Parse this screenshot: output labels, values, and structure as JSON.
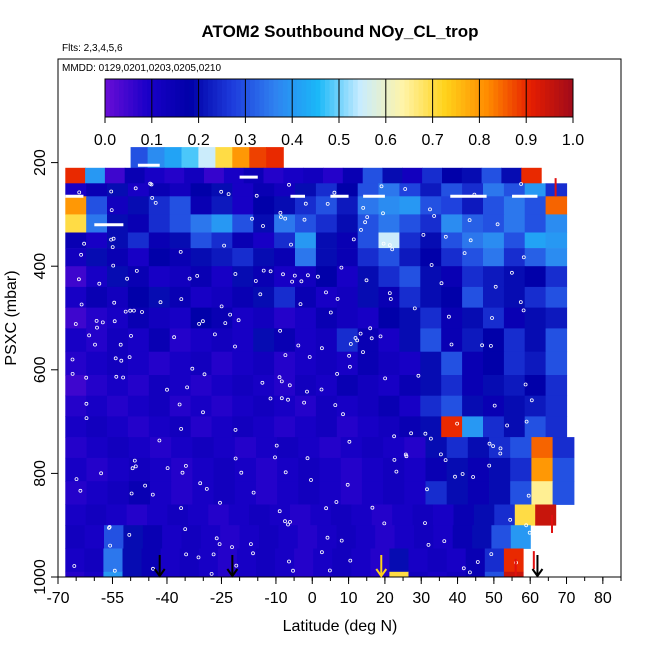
{
  "chart_data": {
    "type": "heatmap",
    "title": "ATOM2 Southbound NOy_CL_trop",
    "subtitle_flights": "Flts: 2,3,4,5,6",
    "subtitle_dates": "MMDD: 0129,0201,0203,0205,0210",
    "xlabel": "Latitude (deg N)",
    "ylabel": "PSXC (mbar)",
    "xlim": [
      -70,
      85
    ],
    "ylim": [
      1000,
      0
    ],
    "x_ticks": [
      -70,
      -55,
      -40,
      -25,
      -10,
      0,
      10,
      20,
      30,
      40,
      50,
      60,
      70,
      80
    ],
    "y_ticks": [
      200,
      400,
      600,
      800,
      1000
    ],
    "colorbar": {
      "range": [
        0.0,
        1.0
      ],
      "ticks": [
        "0.0",
        "0.1",
        "0.2",
        "0.3",
        "0.4",
        "0.5",
        "0.6",
        "0.7",
        "0.8",
        "0.9",
        "1.0"
      ],
      "colors": [
        "#6a0dd6",
        "#1a00c8",
        "#0000a8",
        "#1e3cdc",
        "#2f82f0",
        "#1ab8f8",
        "#c8ecff",
        "#fff4a8",
        "#ffd21a",
        "#ff8a00",
        "#e61e00",
        "#a00a1a"
      ]
    },
    "grid_lat_range": [
      -68,
      72
    ],
    "pressure_levels": [
      170,
      210,
      240,
      265,
      300,
      335,
      365,
      400,
      440,
      480,
      520,
      565,
      610,
      650,
      690,
      730,
      770,
      815,
      860,
      900,
      945,
      990
    ],
    "rows": [
      {
        "p": 170,
        "lat": [
          -50,
          -8
        ],
        "v": [
          0.3,
          0.38,
          0.42,
          0.48,
          0.55,
          0.7,
          0.8,
          0.88,
          0.9
        ]
      },
      {
        "p": 210,
        "lat": [
          -68,
          63
        ],
        "v": [
          0.9,
          0.4,
          0.05,
          0.15,
          0.1,
          0.08,
          0.12,
          0.06,
          0.1,
          0.14,
          0.08,
          0.1,
          0.12,
          0.08,
          0.15,
          0.3,
          0.2,
          0.12,
          0.25,
          0.18,
          0.2,
          0.3,
          0.2,
          0.9
        ]
      },
      {
        "p": 240,
        "lat": [
          -68,
          70
        ],
        "v": [
          0.1,
          0.15,
          0.2,
          0.1,
          0.15,
          0.12,
          0.18,
          0.2,
          0.1,
          0.15,
          0.12,
          0.2,
          0.25,
          0.18,
          0.3,
          0.35,
          0.28,
          0.22,
          0.3,
          0.25,
          0.35,
          0.3,
          0.4,
          0.25
        ]
      },
      {
        "p": 265,
        "lat": [
          -68,
          70
        ],
        "v": [
          0.8,
          0.3,
          0.12,
          0.2,
          0.25,
          0.3,
          0.15,
          0.22,
          0.1,
          0.18,
          0.2,
          0.25,
          0.3,
          0.22,
          0.35,
          0.38,
          0.4,
          0.3,
          0.28,
          0.22,
          0.3,
          0.35,
          0.3,
          0.85
        ]
      },
      {
        "p": 300,
        "lat": [
          -68,
          70
        ],
        "v": [
          0.7,
          0.35,
          0.2,
          0.15,
          0.25,
          0.3,
          0.35,
          0.4,
          0.3,
          0.2,
          0.35,
          0.3,
          0.25,
          0.2,
          0.3,
          0.35,
          0.3,
          0.25,
          0.38,
          0.32,
          0.3,
          0.35,
          0.3,
          0.38
        ]
      },
      {
        "p": 335,
        "lat": [
          -68,
          70
        ],
        "v": [
          0.15,
          0.1,
          0.2,
          0.25,
          0.15,
          0.2,
          0.3,
          0.25,
          0.15,
          0.1,
          0.25,
          0.4,
          0.2,
          0.15,
          0.3,
          0.55,
          0.25,
          0.2,
          0.3,
          0.35,
          0.38,
          0.3,
          0.42,
          0.4
        ]
      },
      {
        "p": 365,
        "lat": [
          -68,
          70
        ],
        "v": [
          0.12,
          0.2,
          0.15,
          0.1,
          0.18,
          0.15,
          0.2,
          0.22,
          0.25,
          0.2,
          0.15,
          0.35,
          0.2,
          0.15,
          0.25,
          0.3,
          0.22,
          0.18,
          0.25,
          0.3,
          0.35,
          0.25,
          0.32,
          0.38
        ]
      },
      {
        "p": 400,
        "lat": [
          -68,
          70
        ],
        "v": [
          0.05,
          0.1,
          0.2,
          0.15,
          0.1,
          0.12,
          0.15,
          0.1,
          0.2,
          0.15,
          0.1,
          0.12,
          0.18,
          0.1,
          0.2,
          0.25,
          0.3,
          0.2,
          0.15,
          0.25,
          0.22,
          0.2,
          0.18,
          0.25
        ]
      },
      {
        "p": 440,
        "lat": [
          -68,
          70
        ],
        "v": [
          0.1,
          0.15,
          0.12,
          0.18,
          0.2,
          0.15,
          0.1,
          0.12,
          0.15,
          0.2,
          0.25,
          0.15,
          0.1,
          0.12,
          0.2,
          0.15,
          0.25,
          0.2,
          0.18,
          0.3,
          0.22,
          0.2,
          0.25,
          0.3
        ]
      },
      {
        "p": 480,
        "lat": [
          -68,
          70
        ],
        "v": [
          0.05,
          0.08,
          0.1,
          0.15,
          0.12,
          0.1,
          0.18,
          0.15,
          0.1,
          0.12,
          0.08,
          0.1,
          0.15,
          0.12,
          0.1,
          0.18,
          0.2,
          0.25,
          0.15,
          0.2,
          0.25,
          0.15,
          0.2,
          0.22
        ]
      },
      {
        "p": 520,
        "lat": [
          -68,
          70
        ],
        "v": [
          0.1,
          0.08,
          0.12,
          0.1,
          0.15,
          0.08,
          0.1,
          0.12,
          0.1,
          0.2,
          0.15,
          0.1,
          0.12,
          0.25,
          0.15,
          0.1,
          0.2,
          0.3,
          0.15,
          0.22,
          0.18,
          0.25,
          0.2,
          0.3
        ]
      },
      {
        "p": 565,
        "lat": [
          -68,
          70
        ],
        "v": [
          0.08,
          0.1,
          0.12,
          0.1,
          0.08,
          0.1,
          0.12,
          0.08,
          0.1,
          0.12,
          0.08,
          0.1,
          0.12,
          0.1,
          0.15,
          0.12,
          0.1,
          0.2,
          0.3,
          0.15,
          0.18,
          0.25,
          0.22,
          0.3
        ]
      },
      {
        "p": 610,
        "lat": [
          -68,
          70
        ],
        "v": [
          0.05,
          0.08,
          0.1,
          0.08,
          0.12,
          0.1,
          0.08,
          0.1,
          0.12,
          0.1,
          0.08,
          0.12,
          0.1,
          0.15,
          0.12,
          0.1,
          0.15,
          0.2,
          0.25,
          0.15,
          0.2,
          0.22,
          0.18,
          0.25
        ]
      },
      {
        "p": 650,
        "lat": [
          -68,
          70
        ],
        "v": [
          0.08,
          0.1,
          0.08,
          0.1,
          0.12,
          0.08,
          0.1,
          0.08,
          0.1,
          0.12,
          0.1,
          0.08,
          0.12,
          0.1,
          0.12,
          0.15,
          0.1,
          0.25,
          0.3,
          0.2,
          0.15,
          0.2,
          0.22,
          0.25
        ]
      },
      {
        "p": 690,
        "lat": [
          -68,
          70
        ],
        "v": [
          0.1,
          0.12,
          0.1,
          0.08,
          0.1,
          0.12,
          0.08,
          0.1,
          0.12,
          0.1,
          0.08,
          0.1,
          0.12,
          0.08,
          0.1,
          0.12,
          0.15,
          0.2,
          0.9,
          0.4,
          0.25,
          0.2,
          0.3,
          0.25
        ]
      },
      {
        "p": 730,
        "lat": [
          -68,
          72
        ],
        "v": [
          0.08,
          0.1,
          0.12,
          0.1,
          0.08,
          0.1,
          0.12,
          0.1,
          0.08,
          0.1,
          0.12,
          0.1,
          0.08,
          0.1,
          0.12,
          0.1,
          0.08,
          0.2,
          0.25,
          0.2,
          0.25,
          0.3,
          0.85,
          0.25
        ]
      },
      {
        "p": 770,
        "lat": [
          -68,
          72
        ],
        "v": [
          0.1,
          0.08,
          0.1,
          0.12,
          0.1,
          0.08,
          0.1,
          0.12,
          0.1,
          0.08,
          0.1,
          0.12,
          0.1,
          0.08,
          0.1,
          0.12,
          0.1,
          0.15,
          0.2,
          0.15,
          0.2,
          0.25,
          0.8,
          0.3
        ]
      },
      {
        "p": 815,
        "lat": [
          -68,
          72
        ],
        "v": [
          0.08,
          0.1,
          0.12,
          0.15,
          0.1,
          0.08,
          0.1,
          0.12,
          0.1,
          0.08,
          0.1,
          0.12,
          0.1,
          0.08,
          0.1,
          0.12,
          0.1,
          0.25,
          0.2,
          0.15,
          0.2,
          0.3,
          0.65,
          0.3
        ]
      },
      {
        "p": 860,
        "lat": [
          -68,
          67
        ],
        "v": [
          0.1,
          0.12,
          0.1,
          0.08,
          0.1,
          0.12,
          0.1,
          0.08,
          0.1,
          0.12,
          0.1,
          0.08,
          0.1,
          0.12,
          0.1,
          0.08,
          0.1,
          0.12,
          0.1,
          0.15,
          0.2,
          0.25,
          0.7,
          0.95
        ]
      },
      {
        "p": 900,
        "lat": [
          -68,
          60
        ],
        "v": [
          0.12,
          0.1,
          0.3,
          0.2,
          0.15,
          0.1,
          0.12,
          0.1,
          0.08,
          0.1,
          0.12,
          0.1,
          0.08,
          0.1,
          0.12,
          0.1,
          0.08,
          0.1,
          0.12,
          0.1,
          0.15,
          0.2,
          0.3,
          0.4
        ]
      },
      {
        "p": 945,
        "lat": [
          -68,
          58
        ],
        "v": [
          0.1,
          0.12,
          0.35,
          0.2,
          0.15,
          0.1,
          0.12,
          0.1,
          0.08,
          0.1,
          0.12,
          0.1,
          0.08,
          0.1,
          0.12,
          0.1,
          0.08,
          0.2,
          0.1,
          0.12,
          0.1,
          0.15,
          0.25,
          0.9
        ]
      },
      {
        "p": 990,
        "lat": [
          -68,
          58
        ],
        "v": [
          0.08,
          0.1,
          0.4,
          0.2,
          0.15,
          0.1,
          0.12,
          0.1,
          0.08,
          0.1,
          0.12,
          0.1,
          0.08,
          0.1,
          0.12,
          0.1,
          0.08,
          0.7,
          0.12,
          0.1,
          0.12,
          0.15,
          0.3,
          0.95
        ]
      }
    ],
    "arrow_latitudes": [
      -42,
      -22,
      19,
      62
    ],
    "arrow_colors": [
      "#000000",
      "#000000",
      "#ffd21a",
      "#000000"
    ],
    "red_marks": [
      {
        "lat": 56,
        "p": 990
      },
      {
        "lat": 61,
        "p": 975
      },
      {
        "lat": 66,
        "p": 905
      },
      {
        "lat": 67,
        "p": 255
      }
    ]
  }
}
